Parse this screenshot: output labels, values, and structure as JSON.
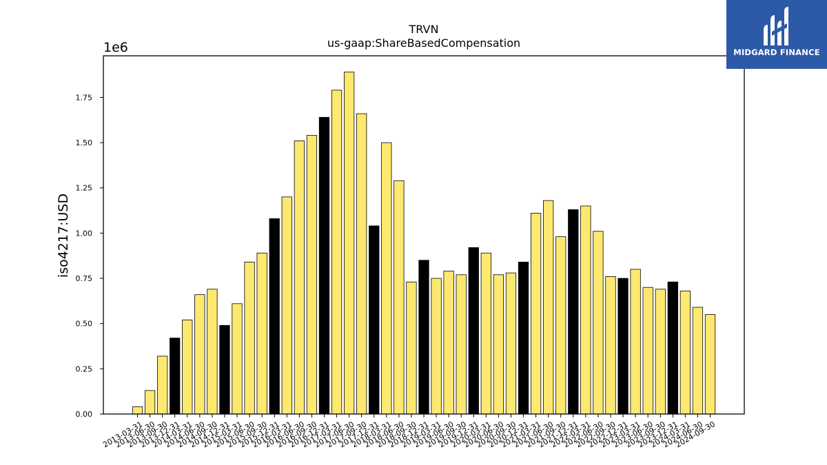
{
  "chart_data": {
    "type": "bar",
    "title": "TRVN",
    "subtitle": "us-gaap:ShareBasedCompensation",
    "ylabel": "iso4217:USD",
    "xlabel": "",
    "y_multiplier_label": "1e6",
    "ylim": [
      0,
      1.98
    ],
    "y_ticks": [
      "0.00",
      "0.25",
      "0.50",
      "0.75",
      "1.00",
      "1.25",
      "1.50",
      "1.75"
    ],
    "grid": false,
    "legend": "none",
    "bar_color": "#fde870",
    "highlight_color": "#000000",
    "categories": [
      "2013-03-31",
      "2013-06-30",
      "2013-09-30",
      "2013-12-31",
      "2014-03-31",
      "2014-06-30",
      "2014-09-30",
      "2014-12-31",
      "2015-03-31",
      "2015-06-30",
      "2015-09-30",
      "2015-12-31",
      "2016-03-31",
      "2016-06-30",
      "2016-09-30",
      "2016-12-31",
      "2017-03-31",
      "2017-06-30",
      "2017-09-30",
      "2017-12-31",
      "2018-03-31",
      "2018-06-30",
      "2018-09-30",
      "2018-12-31",
      "2019-03-31",
      "2019-06-30",
      "2019-09-30",
      "2019-12-31",
      "2020-03-31",
      "2020-06-30",
      "2020-09-30",
      "2020-12-31",
      "2021-03-31",
      "2021-06-30",
      "2021-09-30",
      "2021-12-31",
      "2022-03-31",
      "2022-06-30",
      "2022-09-30",
      "2022-12-31",
      "2023-03-31",
      "2023-06-30",
      "2023-09-30",
      "2023-12-31",
      "2024-03-31",
      "2024-06-30",
      "2024-09-30"
    ],
    "values": [
      0.04,
      0.13,
      0.32,
      0.42,
      0.52,
      0.66,
      0.69,
      0.49,
      0.61,
      0.84,
      0.89,
      1.08,
      1.2,
      1.51,
      1.54,
      1.64,
      1.79,
      1.89,
      1.66,
      1.04,
      1.5,
      1.29,
      0.73,
      0.85,
      0.75,
      0.79,
      0.77,
      0.92,
      0.89,
      0.77,
      0.78,
      0.84,
      1.11,
      1.18,
      0.98,
      1.13,
      1.15,
      1.01,
      0.76,
      0.75,
      0.8,
      0.7,
      0.69,
      0.73,
      0.68,
      0.59,
      0.55
    ],
    "highlighted": [
      false,
      false,
      false,
      true,
      false,
      false,
      false,
      true,
      false,
      false,
      false,
      true,
      false,
      false,
      false,
      true,
      false,
      false,
      false,
      true,
      false,
      false,
      false,
      true,
      false,
      false,
      false,
      true,
      false,
      false,
      false,
      true,
      false,
      false,
      false,
      true,
      false,
      false,
      false,
      true,
      false,
      false,
      false,
      true,
      false,
      false,
      false
    ]
  },
  "logo": {
    "text": "MIDGARD FINANCE",
    "background": "#2d5aa8"
  }
}
